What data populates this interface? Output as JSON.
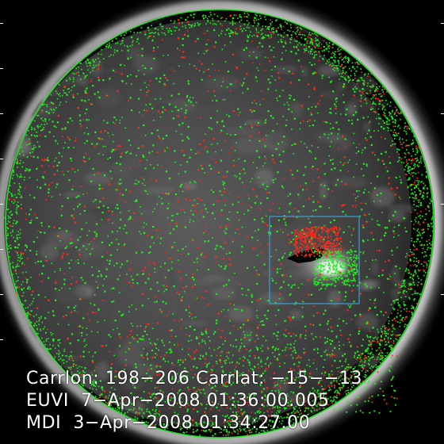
{
  "captions": {
    "carr": "Carrlon: 198−206 Carrlat: −15−−13",
    "euvi": "EUVI  7−Apr−2008 01:36:00.005",
    "mdi": "MDI  3−Apr−2008 01:34:27.00"
  },
  "colors": {
    "background": "#000000",
    "limb_circle": "#22dd22",
    "positive_polarity": "#ff2a1a",
    "negative_polarity": "#22ee22",
    "region_box": "#3aa0d8",
    "caption_text": "#ffffff"
  },
  "region_of_interest": {
    "carrington_longitude_range": [
      198,
      206
    ],
    "carrington_latitude_range": [
      -15,
      -13
    ]
  }
}
